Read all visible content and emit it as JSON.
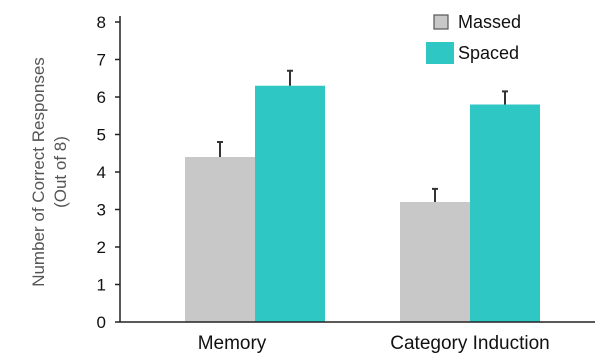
{
  "chart_data": {
    "type": "bar",
    "categories": [
      "Memory",
      "Category Induction"
    ],
    "series": [
      {
        "name": "Massed",
        "values": [
          4.4,
          3.2
        ],
        "errors": [
          0.4,
          0.35
        ],
        "color": "#c8c8c8"
      },
      {
        "name": "Spaced",
        "values": [
          6.3,
          5.8
        ],
        "errors": [
          0.4,
          0.35
        ],
        "color": "#2ec7c4"
      }
    ],
    "ylabel_line1": "Number of Correct Responses",
    "ylabel_line2": "(Out of 8)",
    "ylim": [
      0,
      8
    ],
    "yticks": [
      "0",
      "1",
      "2",
      "3",
      "4",
      "5",
      "6",
      "7",
      "8"
    ],
    "grid": false,
    "legend_position": "top-right"
  }
}
